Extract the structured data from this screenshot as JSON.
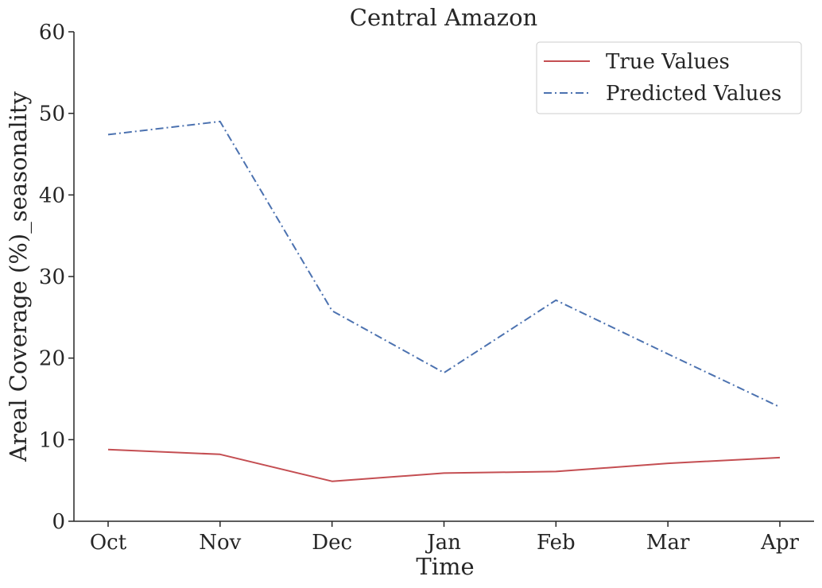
{
  "chart_data": {
    "type": "line",
    "title": "Central Amazon",
    "xlabel": "Time",
    "ylabel": "Areal Coverage (%)_seasonality",
    "categories": [
      "Oct",
      "Nov",
      "Dec",
      "Jan",
      "Feb",
      "Mar",
      "Apr"
    ],
    "ylim": [
      0,
      60
    ],
    "yticks": [
      0,
      10,
      20,
      30,
      40,
      50,
      60
    ],
    "grid": false,
    "legend_position": "top-right",
    "series": [
      {
        "name": "True Values",
        "values": [
          8.8,
          8.2,
          4.9,
          5.9,
          6.1,
          7.1,
          7.8
        ],
        "color": "#c44e52",
        "dash": "solid"
      },
      {
        "name": "Predicted Values",
        "values": [
          47.4,
          49.0,
          25.8,
          18.2,
          27.1,
          20.5,
          14.0
        ],
        "color": "#4c72b0",
        "dash": "dashdot"
      }
    ]
  }
}
